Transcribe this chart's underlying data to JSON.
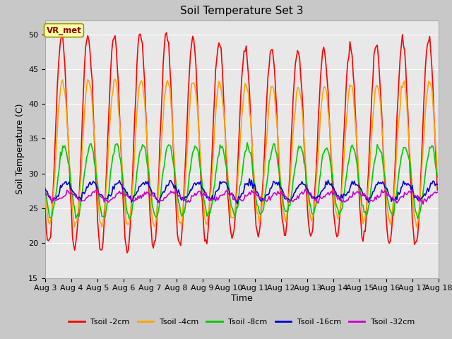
{
  "title": "Soil Temperature Set 3",
  "xlabel": "Time",
  "ylabel": "Soil Temperature (C)",
  "ylim": [
    15,
    52
  ],
  "yticks": [
    15,
    20,
    25,
    30,
    35,
    40,
    45,
    50
  ],
  "series": [
    {
      "label": "Tsoil -2cm",
      "color": "#ff0000",
      "lw": 1.2
    },
    {
      "label": "Tsoil -4cm",
      "color": "#ffa500",
      "lw": 1.2
    },
    {
      "label": "Tsoil -8cm",
      "color": "#00cc00",
      "lw": 1.2
    },
    {
      "label": "Tsoil -16cm",
      "color": "#0000dd",
      "lw": 1.2
    },
    {
      "label": "Tsoil -32cm",
      "color": "#cc00cc",
      "lw": 1.2
    }
  ],
  "annotation_text": "VR_met",
  "fig_bg_color": "#c8c8c8",
  "plot_bg_color": "#e8e8e8",
  "grid_color": "#ffffff",
  "title_fontsize": 11,
  "label_fontsize": 9,
  "tick_fontsize": 8
}
